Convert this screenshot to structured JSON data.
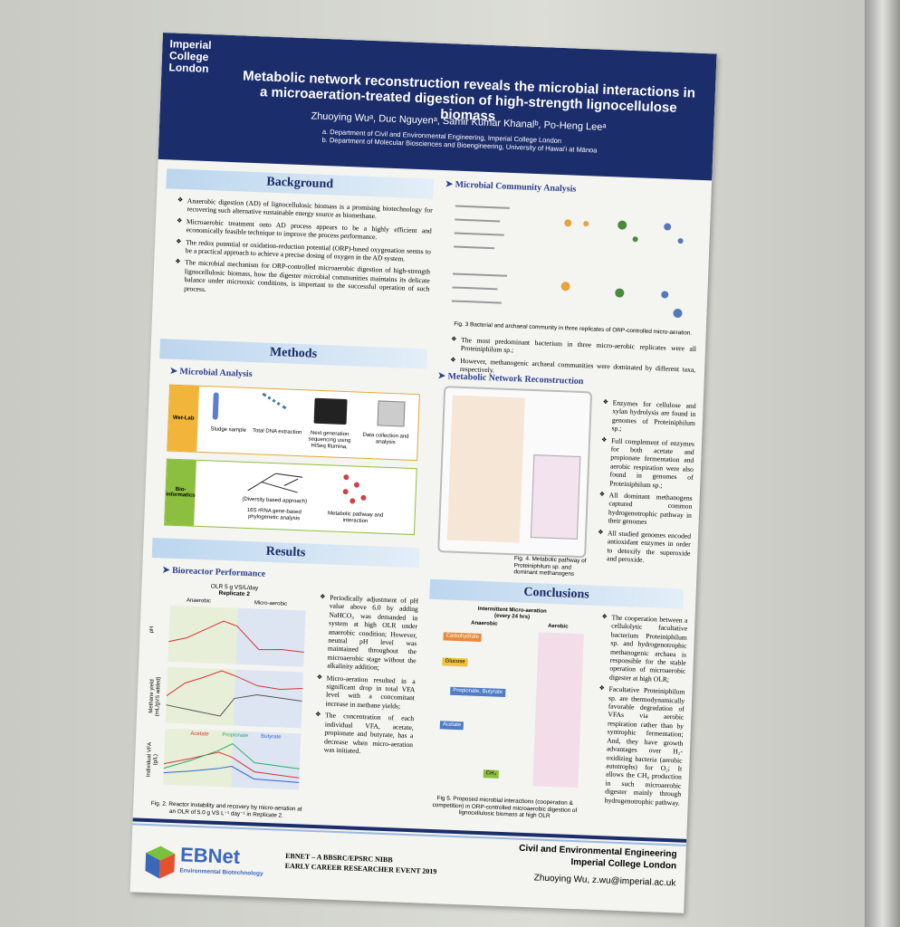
{
  "header": {
    "institution": "Imperial College London",
    "title": "Metabolic network reconstruction reveals the microbial interactions in a microaeration-treated digestion of high-strength lignocellulose biomass",
    "authors": "Zhuoying Wuᵃ, Duc Nguyenᵃ, Samir Kumar Khanalᵇ, Po-Heng Leeᵃ",
    "affiliations": [
      "a.  Department of Civil and Environmental Engineering, Imperial College London",
      "b.  Department of Molecular Biosciences and Bioengineering, University of Hawai'i at Mānoa"
    ]
  },
  "background": {
    "heading": "Background",
    "bullets": [
      "Anaerobic digestion (AD) of lignocellulosic biomass is a promising biotechnology for recovering such alternative sustainable energy source as biomethane.",
      "Microaerobic treatment onto AD process appears to be a highly efficient and economically feasible technique to improve the process performance.",
      "The redox potential or oxidation-reduction potential (ORP)-based oxygenation seems to be a practical approach to achieve a precise dosing of oxygen in the AD system.",
      "The microbial mechanism for ORP-controlled microaerobic digestion of high-strength lignocellulosic biomass, how the digester microbial communities maintains its delicate balance under microoxic conditions, is important to the successful operation of such process."
    ]
  },
  "methods": {
    "heading": "Methods",
    "subheading": "Microbial Analysis",
    "wetlab": {
      "label": "Wet-Lab",
      "steps": [
        "Sludge sample",
        "Total DNA extraction",
        "Next generation sequencing using HiSeq Illumina,",
        "Data collection and analysis"
      ]
    },
    "bioinfo": {
      "label": "Bio-informatics",
      "steps": [
        "16S rRNA gene-based phylogenetic analysis",
        "Metabolic pathway and interaction"
      ],
      "note": "(Diversity based approach)"
    }
  },
  "results": {
    "heading": "Results",
    "subheading": "Bioreactor Performance",
    "figure": {
      "title": "OLR 5 g VS/L/day",
      "subtitle": "Replicate 2",
      "phases": [
        "Anaerobic",
        "Micro-aerobic"
      ],
      "ylabels": [
        "pH",
        "Methane yield (mL/gVS added)",
        "Individual VFA (g/L)"
      ],
      "legend": [
        "Acetate",
        "Propionate",
        "Butyrate"
      ]
    },
    "caption": "Fig. 2. Reactor instability and recovery by micro-aeration at an OLR of 5.0 g VS L⁻¹ day⁻¹ in Replicate 2.",
    "bullets": [
      "Periodically adjustment of pH value above 6.0 by adding NaHCO₃ was demanded in system at high OLR under anaerobic condition; However, neutral pH level was maintained throughout the microaerobic stage without the alkalinity addition;",
      "Micro-aeration resulted in a significant drop in total VFA level with a concomitant increase in methane yields;",
      "The concentration of each individual VFA, acetate, propionate and butyrate, has a decrease when micro-aeration was initiated."
    ]
  },
  "community": {
    "heading": "Microbial Community Analysis",
    "caption": "Fig. 3 Bacterial and archaeal community in three replicates of ORP-controlled micro-aeration.",
    "bullets": [
      "The most predominant bacterium in three micro-aerobic replicates were all Proteiniphilum sp.;",
      "However, methanogenic archaeal communities were dominated by different taxa, respectively."
    ]
  },
  "metabolic": {
    "heading": "Metabolic Network Reconstruction",
    "caption": "Fig. 4. Metabolic pathway of Proteiniphilum sp. and dominant methanogens",
    "bullets": [
      "Enzymes for cellulose and xylan hydrolysis are found in genomes of Proteiniphilum sp.;",
      "Full complement of enzymes for both acetate and propionate fermentation and aerobic respiration were also found in genomes of Proteiniphilum sp.;",
      "All dominant methanogens captured common hydrogenotrophic pathway in their genomes",
      "All studied genomes encoded antioxidant enzymes in order to detoxify the superoxide and peroxide."
    ]
  },
  "conclusions": {
    "heading": "Conclusions",
    "figure": {
      "title": "Intermittent Micro-aeration (every 24 hrs)",
      "phases": [
        "Anaerobic",
        "Aerobic"
      ],
      "boxes": [
        "Carbohydrate",
        "Glucose",
        "Propionate, Butyrate",
        "Acetate",
        "CH₄"
      ]
    },
    "caption": "Fig 5. Proposed microbial interactions (cooperation & competition) in ORP-controlled microaerobic digestion of lignocellulosic biomass at high OLR",
    "bullets": [
      "The cooperation between a cellulolytic facultative bacterium Proteiniphilum sp. and hydrogenotrophic methanogenic archaea is responsible for the stable operation of microaerobic digester at high OLR;",
      "Facultative Proteiniphilum sp. are thermodynamically favorable degradation of VFAs via aerobic respiration rather than by syntrophic fermentation; And, they have growth advantages over H₂-oxidizing bacteria (aerobic autotrophs) for O₂; It allows the CH₄ production in such microaerobic digester mainly through hydrogenotrophic pathway."
    ]
  },
  "footer": {
    "department": "Civil and Environmental Engineering",
    "college": "Imperial College London",
    "contact": "Zhuoying Wu, z.wu@imperial.ac.uk",
    "logo": "EBNet",
    "logo_sub": "Environmental Biotechnology",
    "event": [
      "EBNET – A BBSRC/EPSRC NIBB",
      "EARLY CAREER RESEARCHER EVENT 2019"
    ]
  }
}
